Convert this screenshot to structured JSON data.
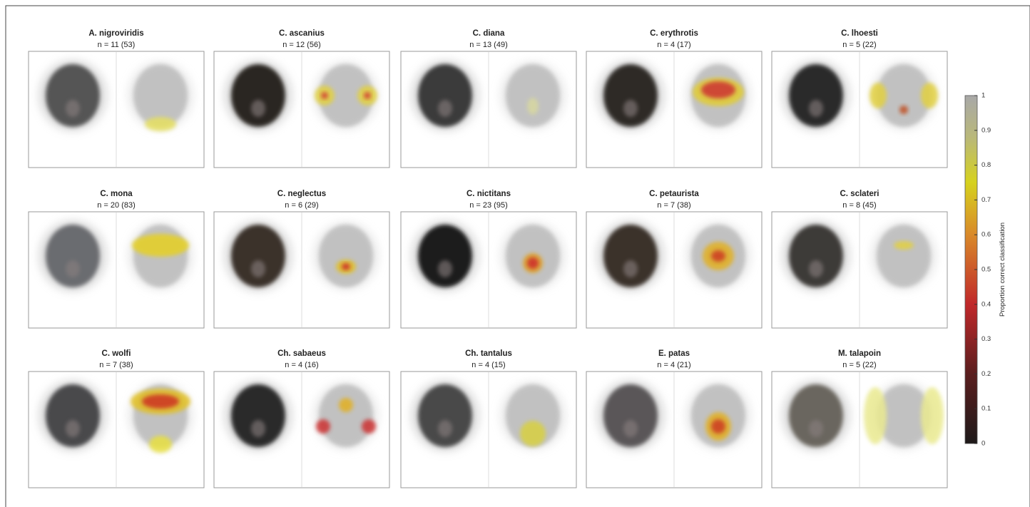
{
  "figure": {
    "panels": [
      {
        "title": "A. nigroviridis",
        "subtitle": "n = 11 (53)"
      },
      {
        "title": "C. ascanius",
        "subtitle": "n = 12 (56)"
      },
      {
        "title": "C. diana",
        "subtitle": "n = 13 (49)"
      },
      {
        "title": "C. erythrotis",
        "subtitle": "n = 4 (17)"
      },
      {
        "title": "C. lhoesti",
        "subtitle": "n = 5 (22)"
      },
      {
        "title": "C. mona",
        "subtitle": "n = 20 (83)"
      },
      {
        "title": "C. neglectus",
        "subtitle": "n = 6 (29)"
      },
      {
        "title": "C. nictitans",
        "subtitle": "n = 23 (95)"
      },
      {
        "title": "C. petaurista",
        "subtitle": "n = 7 (38)"
      },
      {
        "title": "C. sclateri",
        "subtitle": "n = 8 (45)"
      },
      {
        "title": "C. wolfi",
        "subtitle": "n = 7 (38)"
      },
      {
        "title": "Ch. sabaeus",
        "subtitle": "n = 4 (16)"
      },
      {
        "title": "Ch. tantalus",
        "subtitle": "n = 4 (15)"
      },
      {
        "title": "E. patas",
        "subtitle": "n = 4 (21)"
      },
      {
        "title": "M. talapoin",
        "subtitle": "n = 5 (22)"
      }
    ],
    "colorbar": {
      "label": "Proportion correct classification",
      "lim": [
        0,
        1
      ],
      "ticks": [
        0,
        0.1,
        0.2,
        0.3,
        0.4,
        0.5,
        0.6,
        0.7,
        0.8,
        0.9,
        1
      ]
    }
  }
}
